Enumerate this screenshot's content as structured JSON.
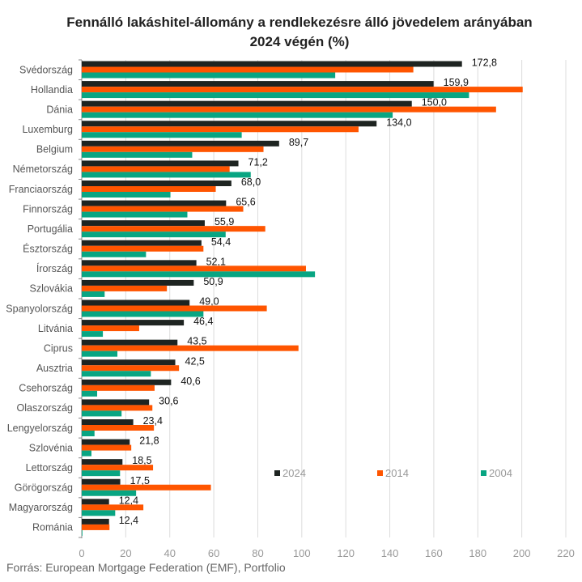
{
  "chart_data": {
    "type": "bar",
    "orientation": "horizontal",
    "title": "Fennálló lakáshitel-állomány a rendlekezésre álló jövedelem arányában",
    "subtitle": "2024 végén (%)",
    "xlabel": "",
    "ylabel": "",
    "xlim": [
      0,
      220
    ],
    "x_ticks": [
      "0",
      "20",
      "40",
      "60",
      "80",
      "100",
      "120",
      "140",
      "160",
      "180",
      "200",
      "220"
    ],
    "grid": true,
    "legend_position": "bottom-right",
    "categories": [
      "Svédország",
      "Hollandia",
      "Dánia",
      "Luxemburg",
      "Belgium",
      "Németország",
      "Franciaország",
      "Finnország",
      "Portugália",
      "Észtország",
      "Írország",
      "Szlovákia",
      "Spanyolország",
      "Litvánia",
      "Ciprus",
      "Ausztria",
      "Csehország",
      "Olaszország",
      "Lengyelország",
      "Szlovénia",
      "Lettország",
      "Görögország",
      "Magyarország",
      "Románia"
    ],
    "series": [
      {
        "name": "2024",
        "color": "#1e2421",
        "labeled": true,
        "values": [
          172.8,
          159.9,
          150.0,
          134.0,
          89.7,
          71.2,
          68.0,
          65.6,
          55.9,
          54.4,
          52.1,
          50.9,
          49.0,
          46.4,
          43.5,
          42.5,
          40.6,
          30.6,
          23.4,
          21.8,
          18.5,
          17.5,
          12.4,
          12.4
        ],
        "labels": [
          "172,8",
          "159,9",
          "150,0",
          "134,0",
          "89,7",
          "71,2",
          "68,0",
          "65,6",
          "55,9",
          "54,4",
          "52,1",
          "50,9",
          "49,0",
          "46,4",
          "43,5",
          "42,5",
          "40,6",
          "30,6",
          "23,4",
          "21,8",
          "18,5",
          "17,5",
          "12,4",
          "12,4"
        ]
      },
      {
        "name": "2014",
        "color": "#ff5500",
        "values": [
          150.7,
          200.4,
          188.3,
          125.8,
          82.6,
          67.2,
          60.9,
          73.4,
          83.4,
          55.3,
          101.9,
          38.7,
          84.1,
          26.1,
          98.5,
          44.2,
          33.1,
          32.1,
          32.8,
          22.5,
          32.4,
          58.7,
          28.0,
          12.6
        ]
      },
      {
        "name": "2004",
        "color": "#08a582",
        "values": [
          115.2,
          176.0,
          141.3,
          72.7,
          50.2,
          76.8,
          40.3,
          48.0,
          65.4,
          29.2,
          106.0,
          10.4,
          55.3,
          9.6,
          16.2,
          31.4,
          7.0,
          18.1,
          5.8,
          4.4,
          17.4,
          24.7,
          15.2,
          0.3
        ]
      }
    ]
  },
  "source": "Forrás: European Mortgage Federation (EMF), Portfolio"
}
